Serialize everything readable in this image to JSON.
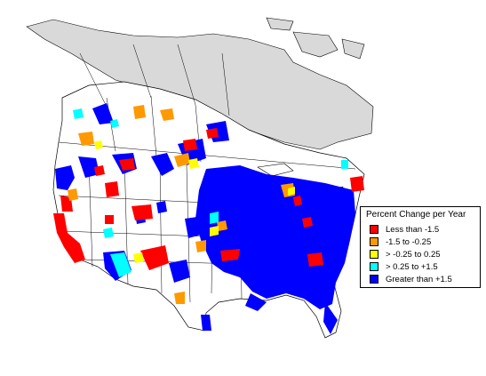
{
  "legend": {
    "title": "Percent Change per Year",
    "items": [
      {
        "label": "Less than -1.5",
        "color": "#ff0000"
      },
      {
        "label": "-1.5 to -0.25",
        "color": "#ff9900"
      },
      {
        "label": "> -0.25 to 0.25",
        "color": "#ffff00"
      },
      {
        "label": "> 0.25 to +1.5",
        "color": "#00ffff"
      },
      {
        "label": "Greater than +1.5",
        "color": "#0000ff"
      }
    ]
  },
  "colors": {
    "no_data_gray": "#d9d9d9",
    "land": "#ffffff",
    "boundaries": "#000000",
    "water": "#ffffff"
  }
}
